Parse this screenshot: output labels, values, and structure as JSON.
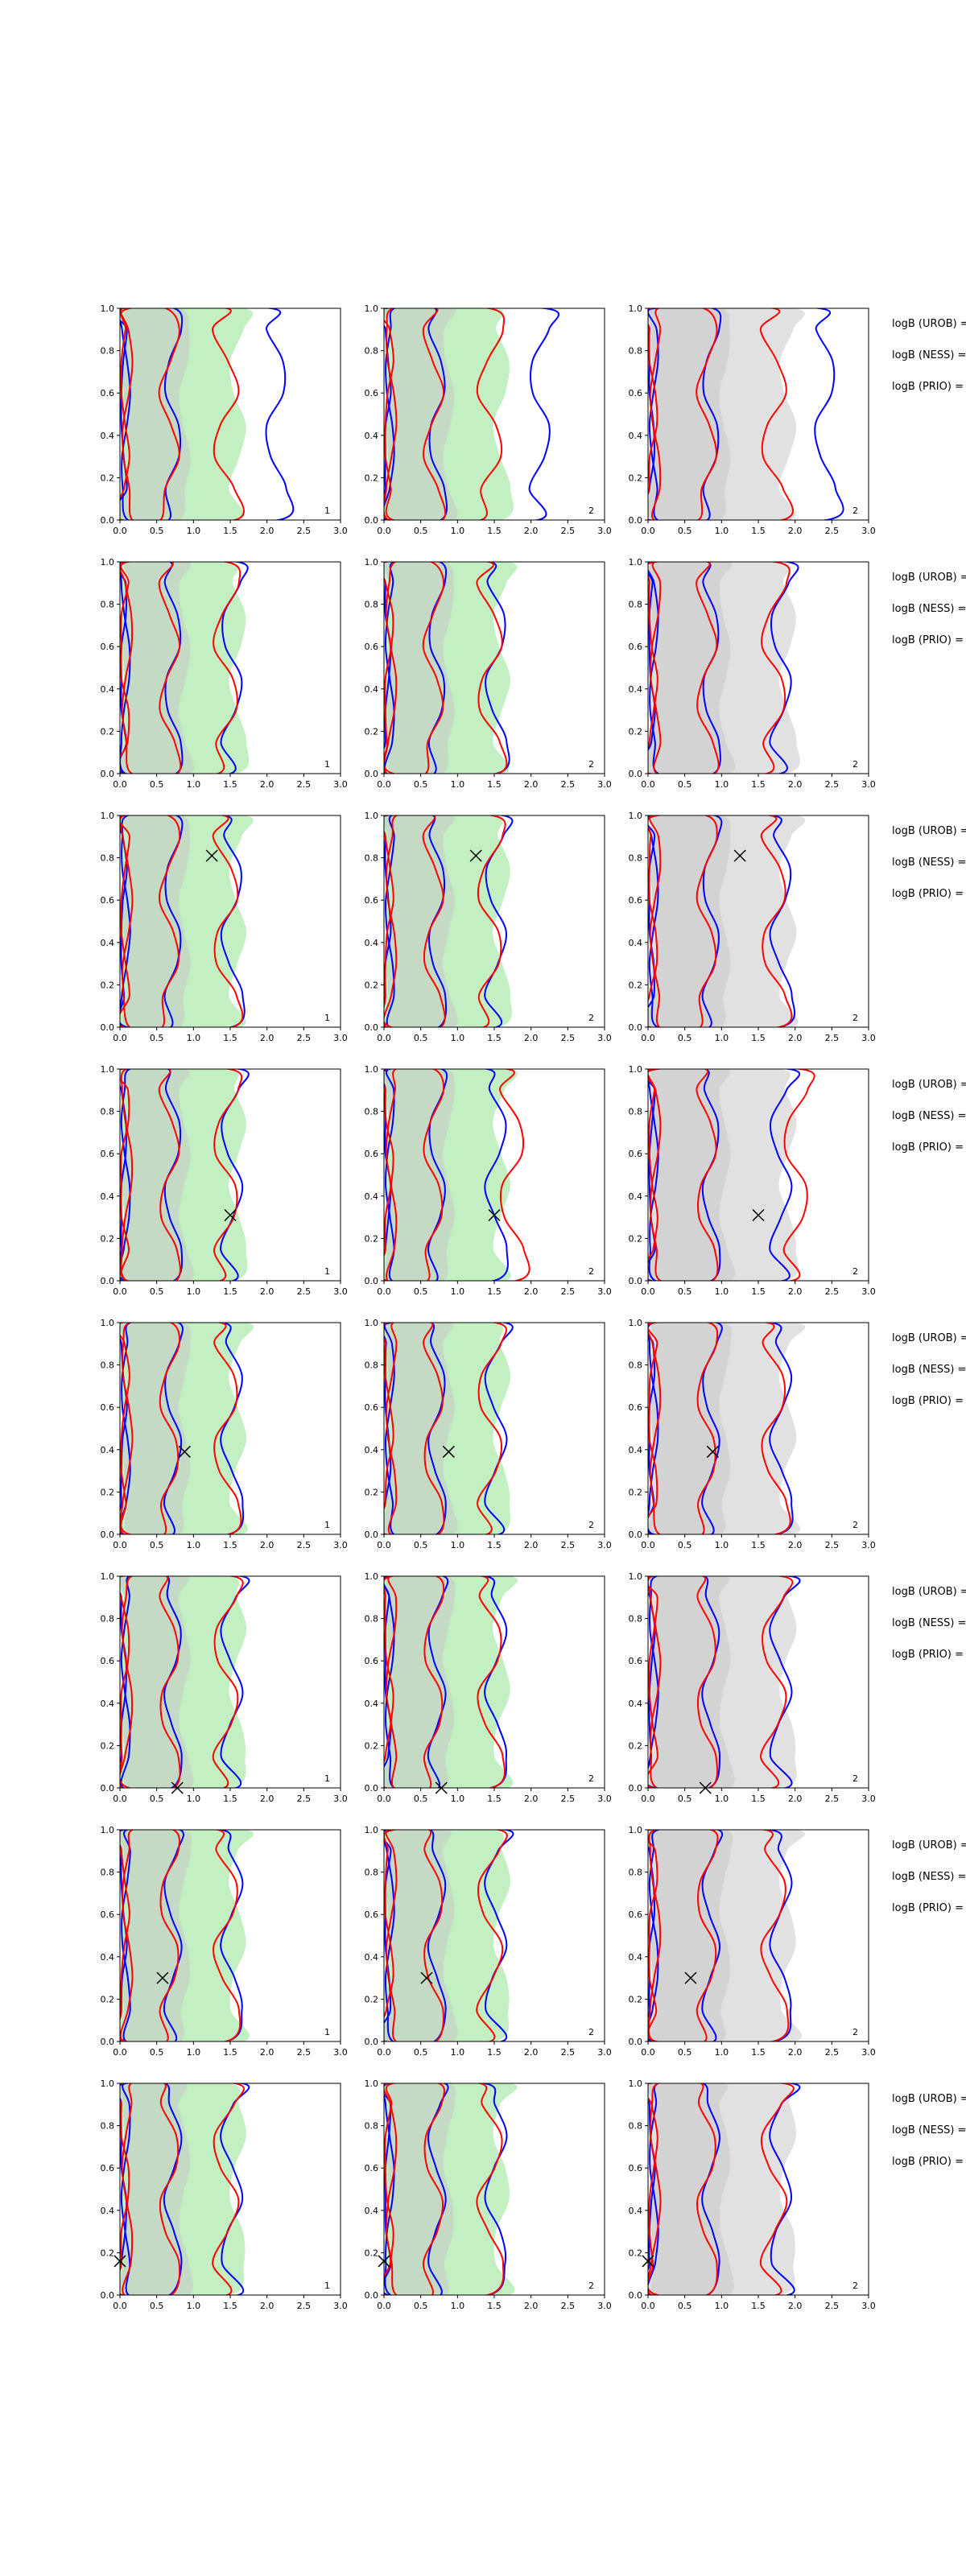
{
  "colors": {
    "ness": "#0000ff",
    "prio": "#ff0000",
    "fill_green": "#90e390",
    "fill_gray": "#c8c8c8",
    "axis": "#000000"
  },
  "legend_texts": [
    "logB (UROB) =",
    "logB (NESS) =",
    "logB (PRIO) ="
  ],
  "chart_data": {
    "type": "contour-grid",
    "rows": 8,
    "columns": 3,
    "xlim": [
      0,
      3.0
    ],
    "ylim": [
      0,
      1.0
    ],
    "xticks": [
      "0.0",
      "0.5",
      "1.0",
      "1.5",
      "2.0",
      "2.5",
      "3.0"
    ],
    "yticks": [
      "0.0",
      "0.2",
      "0.4",
      "0.6",
      "0.8",
      "1.0"
    ],
    "column_labels": [
      "1",
      "2",
      "2"
    ],
    "column_fills": [
      "green",
      "green",
      "gray"
    ],
    "markers": [
      null,
      null,
      {
        "x": 1.25,
        "y": 0.81
      },
      {
        "x": 1.5,
        "y": 0.31
      },
      {
        "x": 0.88,
        "y": 0.39
      },
      {
        "x": 0.78,
        "y": 0.0
      },
      {
        "x": 0.58,
        "y": 0.3
      },
      {
        "x": 0.0,
        "y": 0.16
      }
    ]
  }
}
